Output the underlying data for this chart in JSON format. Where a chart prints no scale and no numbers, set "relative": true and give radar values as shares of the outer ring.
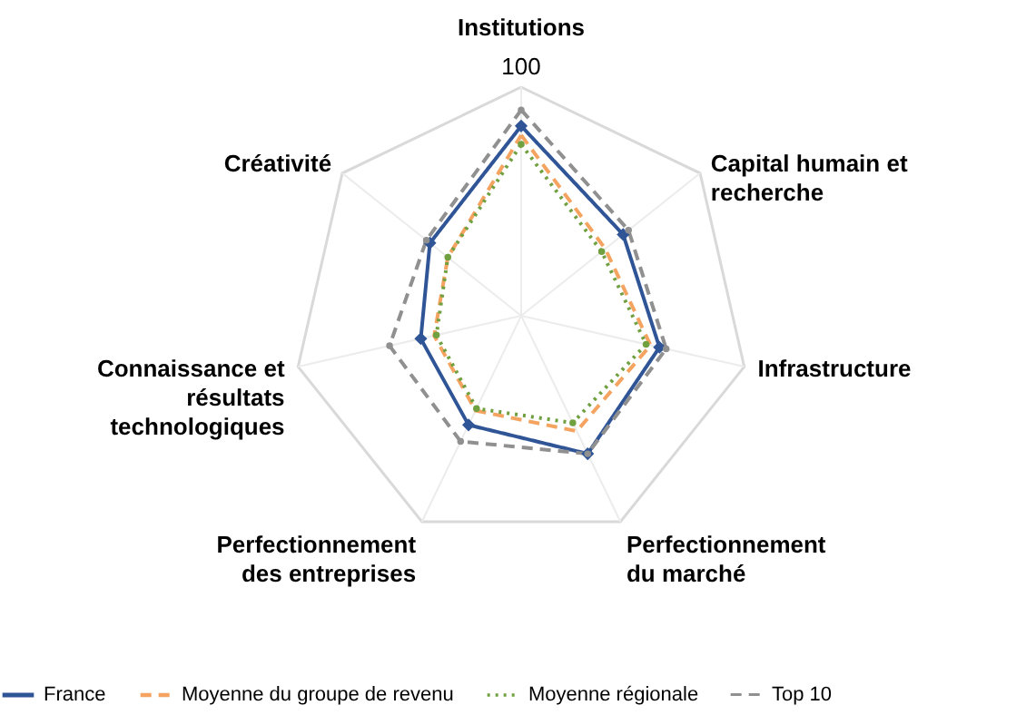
{
  "chart_data": {
    "type": "radar",
    "relative": true,
    "categories": [
      "Institutions",
      "Capital humain et recherche",
      "Infrastructure",
      "Perfectionnement du marché",
      "Perfectionnement des entreprises",
      "Connaissance et résultats technologiques",
      "Créativité"
    ],
    "series": [
      {
        "name": "France",
        "color": "#2f5597",
        "marker": "diamond",
        "line_style": "solid",
        "values": [
          0.83,
          0.57,
          0.62,
          0.67,
          0.53,
          0.45,
          0.51
        ]
      },
      {
        "name": "Moyenne du groupe de revenu",
        "color": "#f4a460",
        "marker": "none",
        "line_style": "dashed",
        "values": [
          0.79,
          0.47,
          0.58,
          0.56,
          0.46,
          0.39,
          0.41
        ]
      },
      {
        "name": "Moyenne régionale",
        "color": "#70a040",
        "marker": "circle",
        "line_style": "dotted",
        "values": [
          0.75,
          0.45,
          0.56,
          0.52,
          0.45,
          0.38,
          0.41
        ]
      },
      {
        "name": "Top 10",
        "color": "#909090",
        "marker": "circle",
        "line_style": "dashed",
        "values": [
          0.9,
          0.6,
          0.65,
          0.67,
          0.61,
          0.59,
          0.53
        ]
      }
    ],
    "annotations": [
      "100"
    ],
    "grid": true,
    "legend": "bottom"
  }
}
